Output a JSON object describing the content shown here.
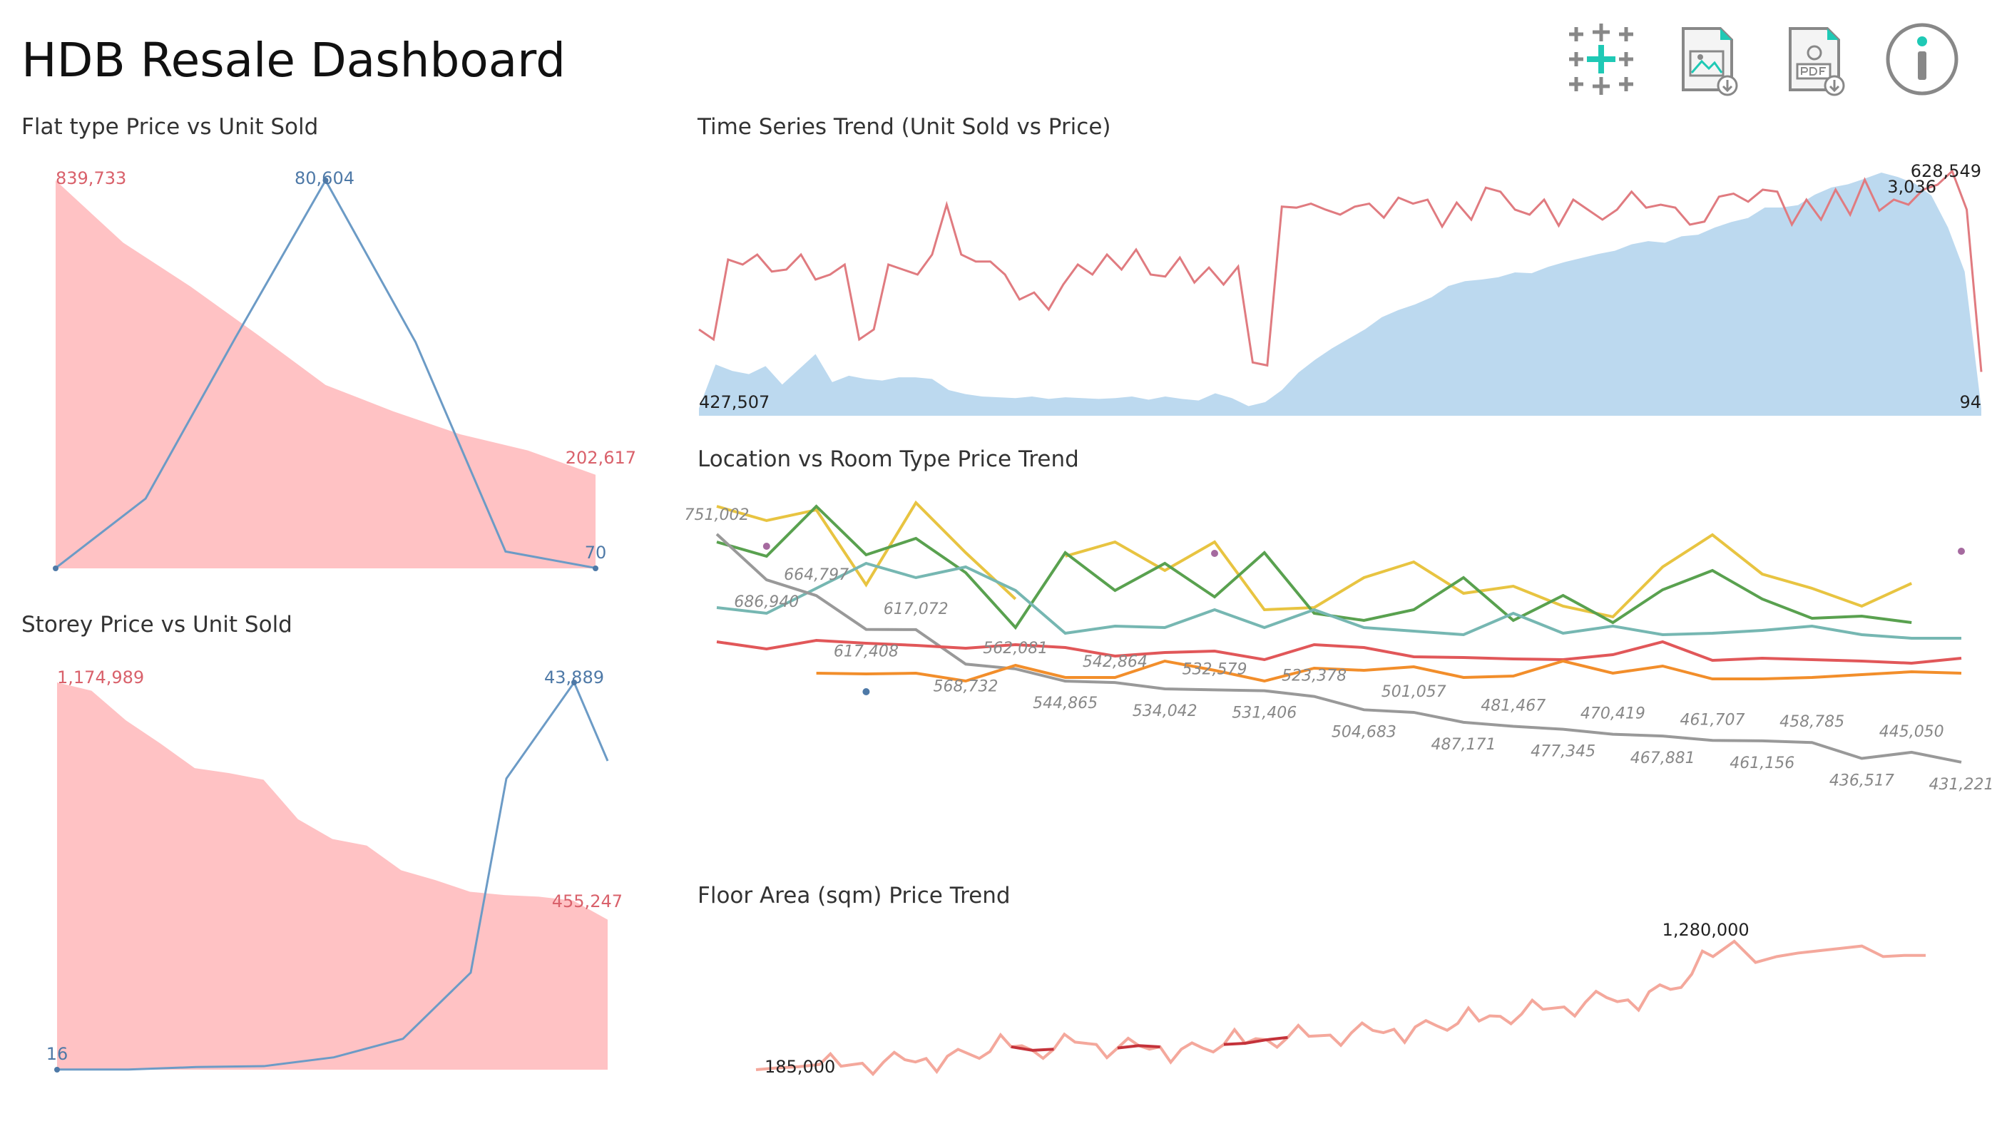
{
  "dashboard": {
    "title": "HDB Resale Dashboard",
    "toolbar": [
      {
        "name": "tableau-logo-icon"
      },
      {
        "name": "download-image-icon"
      },
      {
        "name": "download-pdf-icon"
      },
      {
        "name": "info-icon"
      }
    ]
  },
  "colors": {
    "price_area": "#ffc2c4",
    "price_label": "#d9616b",
    "units_line": "#6c9bc6",
    "units_label": "#4e79a7",
    "ts_area": "#bcd9ef",
    "ts_line": "#e07b80"
  },
  "chart_data": [
    {
      "id": "flat_type",
      "title": "Flat type Price vs Unit Sold",
      "type": "area+line",
      "series": [
        {
          "name": "Price",
          "style": "area",
          "values": [
            839733,
            705000,
            610000,
            505000,
            397000,
            340000,
            290000,
            255000,
            202617
          ]
        },
        {
          "name": "Unit Sold",
          "style": "line",
          "values": [
            70,
            14500,
            48000,
            80604,
            47000,
            3500,
            70
          ]
        }
      ],
      "labels": {
        "price_max": "839,733",
        "price_min": "202,617",
        "units_max": "80,604",
        "units_min": "70"
      }
    },
    {
      "id": "storey",
      "title": "Storey Price vs Unit Sold",
      "type": "area+line",
      "series": [
        {
          "name": "Price",
          "style": "area",
          "values": [
            1174989,
            1150000,
            1060000,
            990000,
            915000,
            900000,
            880000,
            760000,
            700000,
            680000,
            605000,
            575000,
            540000,
            530000,
            525000,
            513000,
            455247
          ]
        },
        {
          "name": "Unit Sold",
          "style": "line",
          "values": [
            16,
            16,
            300,
            400,
            1400,
            3500,
            11000,
            33000,
            43889,
            35000
          ]
        }
      ],
      "labels": {
        "price_max": "1,174,989",
        "price_min": "455,247",
        "units_max": "43,889",
        "units_min": "16"
      }
    },
    {
      "id": "time_series",
      "title": "Time Series Trend (Unit Sold vs Price)",
      "type": "area+line",
      "series": [
        {
          "name": "Unit Sold",
          "style": "area",
          "values": [
            94,
            640,
            560,
            520,
            620,
            390,
            580,
            770,
            420,
            500,
            460,
            440,
            480,
            480,
            460,
            320,
            270,
            240,
            230,
            220,
            240,
            210,
            230,
            220,
            210,
            220,
            240,
            200,
            240,
            210,
            190,
            280,
            220,
            120,
            170,
            320,
            540,
            700,
            840,
            960,
            1080,
            1230,
            1320,
            1390,
            1480,
            1620,
            1680,
            1700,
            1730,
            1790,
            1780,
            1860,
            1920,
            1970,
            2020,
            2060,
            2140,
            2180,
            2160,
            2240,
            2260,
            2350,
            2420,
            2470,
            2600,
            2600,
            2630,
            2760,
            2850,
            2890,
            2960,
            3036,
            2980,
            2900,
            2750,
            2350,
            1800,
            94
          ]
        },
        {
          "name": "Price",
          "style": "line",
          "values": [
            470000,
            460000,
            540000,
            535000,
            545000,
            528000,
            530000,
            545000,
            520000,
            525000,
            535000,
            460000,
            470000,
            535000,
            530000,
            525000,
            545000,
            595000,
            545000,
            538000,
            538000,
            525000,
            500000,
            507000,
            490000,
            515000,
            535000,
            525000,
            545000,
            530000,
            550000,
            525000,
            523000,
            542000,
            517000,
            532000,
            515000,
            533000,
            437000,
            434000,
            593000,
            592000,
            596000,
            590000,
            585000,
            593000,
            596000,
            582000,
            602000,
            596000,
            600000,
            573000,
            597000,
            580000,
            612000,
            608000,
            590000,
            585000,
            600000,
            574000,
            600000,
            590000,
            580000,
            590000,
            608000,
            592000,
            595000,
            592000,
            575000,
            578000,
            603000,
            606000,
            598000,
            610000,
            608000,
            575000,
            600000,
            580000,
            610000,
            585000,
            620000,
            589000,
            600000,
            595000,
            610000,
            615000,
            628549,
            590000,
            427507
          ]
        }
      ],
      "labels": {
        "price_max": "628,549",
        "price_min": "427,507",
        "units_max": "3,036",
        "units_min": "94"
      }
    },
    {
      "id": "location_room",
      "title": "Location vs Room Type Price Trend",
      "type": "line",
      "series": [
        {
          "name": "",
          "color": "#e8c441",
          "segments": [
            [
              0,
              [
                790000,
                770000,
                785000,
                680000,
                795000,
                725000,
                660000
              ]
            ],
            [
              7,
              [
                720000,
                740000,
                700000,
                740000,
                645000,
                648000,
                690000,
                712000,
                668000,
                678000,
                650000,
                635000,
                705000,
                750000,
                695000,
                675000,
                650000,
                682000
              ]
            ]
          ]
        },
        {
          "name": "",
          "color": "#59a14f",
          "segments": [
            [
              0,
              [
                740000,
                720000,
                790000,
                722000,
                745000,
                697000,
                620000,
                725000,
                672000,
                710000,
                663000,
                725000,
                640000,
                630000,
                645000,
                690000,
                630000,
                665000,
                627000,
                673000,
                700000,
                660000,
                633000,
                636000,
                627000
              ]
            ]
          ]
        },
        {
          "name": "",
          "color": "#76b7b2",
          "segments": [
            [
              0,
              [
                648000,
                640000,
                675000,
                710000,
                690000,
                705000,
                672000,
                612000,
                622000,
                620000,
                645000,
                620000,
                645000,
                620000,
                615000,
                610000,
                640000,
                612000,
                622000,
                610000,
                612000,
                616000,
                622000,
                610000,
                605000,
                605000
              ]
            ]
          ]
        },
        {
          "name": "",
          "color": "#999999",
          "values": [
            751002,
            686940,
            664797,
            617408,
            617072,
            568732,
            562081,
            544865,
            542864,
            534042,
            532579,
            531406,
            523378,
            504683,
            501057,
            487171,
            481467,
            477345,
            470419,
            467881,
            461707,
            461156,
            458785,
            436517,
            445050,
            431221
          ]
        },
        {
          "name": "",
          "color": "#e15759",
          "values": [
            600000,
            590000,
            602000,
            598000,
            595000,
            591000,
            596000,
            592000,
            580000,
            585000,
            587000,
            575000,
            596000,
            592000,
            579000,
            578000,
            576000,
            575000,
            582000,
            600000,
            574000,
            577000,
            575000,
            573000,
            570000,
            577000
          ]
        },
        {
          "name": "",
          "color": "#f28e2b",
          "segments": [
            [
              2,
              [
                556000,
                555000,
                556000,
                545000,
                567000,
                550000,
                550000,
                573000,
                560000,
                545000,
                563000,
                560000,
                565000,
                550000,
                552000,
                573000,
                556000,
                566000,
                548000,
                548000,
                550000,
                554000,
                558000,
                556000
              ]
            ]
          ]
        }
      ],
      "dots": [
        {
          "x": 1,
          "y": 734000,
          "color": "#a56a9f"
        },
        {
          "x": 10,
          "y": 724000,
          "color": "#a56a9f"
        },
        {
          "x": 25,
          "y": 727000,
          "color": "#a56a9f"
        },
        {
          "x": 3,
          "y": 530000,
          "color": "#4e79a7"
        }
      ],
      "labels": [
        "751,002",
        "686,940",
        "664,797",
        "617,408",
        "617,072",
        "568,732",
        "562,081",
        "544,865",
        "542,864",
        "534,042",
        "532,579",
        "531,406",
        "523,378",
        "504,683",
        "501,057",
        "487,171",
        "481,467",
        "477,345",
        "470,419",
        "467,881",
        "461,707",
        "461,156",
        "458,785",
        "436,517",
        "445,050",
        "431,221"
      ]
    },
    {
      "id": "floor_area",
      "title": "Floor Area (sqm) Price Trend",
      "type": "line",
      "series": [
        {
          "name": "",
          "values": [
            185000,
            200000,
            210000,
            230000,
            215000,
            240000,
            250000,
            270000,
            280000,
            300000,
            320000,
            340000,
            380000,
            350000,
            360000,
            420000,
            400000,
            370000,
            390000,
            380000,
            360000,
            370000,
            400000,
            410000,
            440000,
            460000,
            470000,
            480000,
            500000,
            520000,
            530000,
            550000,
            560000,
            580000,
            600000,
            640000,
            660000,
            700000,
            720000,
            760000,
            800000,
            780000,
            850000,
            870000,
            1000000,
            1150000,
            1280000,
            1100000,
            1150000,
            1180000,
            1200000,
            1220000,
            1240000,
            1150000,
            1160000,
            1160000
          ]
        }
      ],
      "labels": {
        "max": "1,280,000",
        "min": "185,000"
      }
    }
  ]
}
